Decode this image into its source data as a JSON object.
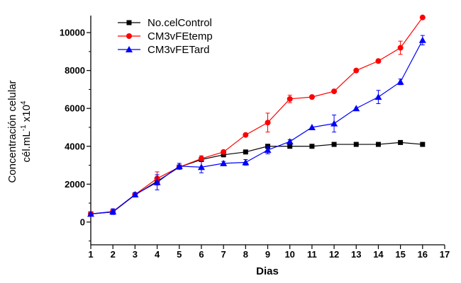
{
  "chart_data": {
    "type": "line",
    "title": "",
    "xlabel": "Dias",
    "ylabel_line1": "Concentración celular",
    "ylabel_line2_prefix": "cél.mL",
    "ylabel_line2_sup1": "-1",
    "ylabel_line2_mid": " x10",
    "ylabel_line2_sup2": "4",
    "xlim": [
      1,
      17
    ],
    "ylim": [
      -1200,
      10900
    ],
    "x_ticks": [
      1,
      2,
      3,
      4,
      5,
      6,
      7,
      8,
      9,
      10,
      11,
      12,
      13,
      14,
      15,
      16,
      17
    ],
    "y_ticks": [
      0,
      2000,
      4000,
      6000,
      8000,
      10000
    ],
    "legend_position": "top-left",
    "series": [
      {
        "name": "No.celControl",
        "color": "#000000",
        "marker": "square",
        "x": [
          1,
          2,
          3,
          4,
          5,
          6,
          7,
          8,
          9,
          10,
          11,
          12,
          13,
          14,
          15,
          16
        ],
        "values": [
          430,
          530,
          1430,
          2150,
          2900,
          3300,
          3550,
          3700,
          4000,
          4000,
          4000,
          4100,
          4100,
          4100,
          4200,
          4100
        ],
        "errors": [
          0,
          0,
          0,
          0,
          0,
          0,
          0,
          0,
          0,
          0,
          0,
          0,
          0,
          0,
          0,
          0
        ]
      },
      {
        "name": "CM3vFEtemp",
        "color": "#ff0000",
        "marker": "circle",
        "x": [
          1,
          2,
          3,
          4,
          5,
          6,
          7,
          8,
          9,
          10,
          11,
          12,
          13,
          14,
          15,
          16
        ],
        "values": [
          430,
          550,
          1450,
          2300,
          2900,
          3350,
          3700,
          4600,
          5250,
          6500,
          6600,
          6900,
          8000,
          8500,
          9200,
          10800
        ],
        "errors": [
          0,
          120,
          0,
          350,
          0,
          150,
          0,
          0,
          500,
          200,
          0,
          0,
          0,
          0,
          350,
          0
        ]
      },
      {
        "name": "CM3vFETard",
        "color": "#0000ff",
        "marker": "triangle",
        "x": [
          1,
          2,
          3,
          4,
          5,
          6,
          7,
          8,
          9,
          10,
          11,
          12,
          13,
          14,
          15,
          16
        ],
        "values": [
          430,
          550,
          1450,
          2100,
          2950,
          2900,
          3100,
          3150,
          3800,
          4250,
          5000,
          5200,
          6000,
          6600,
          7400,
          9600
        ],
        "errors": [
          0,
          150,
          100,
          400,
          150,
          300,
          100,
          150,
          200,
          100,
          0,
          450,
          0,
          350,
          150,
          250
        ]
      }
    ]
  }
}
